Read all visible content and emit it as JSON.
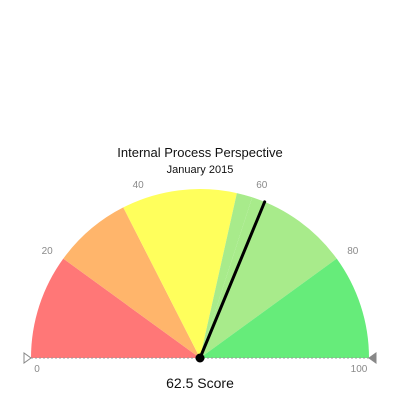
{
  "chart_data": {
    "type": "gauge",
    "title": "Internal Process Perspective",
    "subtitle": "January 2015",
    "range": [
      0,
      100
    ],
    "bands": [
      {
        "from": 0,
        "to": 20,
        "color": "#ff7777"
      },
      {
        "from": 20,
        "to": 35,
        "color": "#ffb56b"
      },
      {
        "from": 35,
        "to": 57,
        "color": "#ffff5c"
      },
      {
        "from": 57,
        "to": 60,
        "color": "#a8eb8b"
      },
      {
        "from": 60,
        "to": 80,
        "color": "#a8eb8b"
      },
      {
        "from": 80,
        "to": 100,
        "color": "#66ec7a"
      }
    ],
    "ticks": [
      {
        "value": 0,
        "label": "0"
      },
      {
        "value": 20,
        "label": "20"
      },
      {
        "value": 40,
        "label": "40"
      },
      {
        "value": 60,
        "label": "60"
      },
      {
        "value": 80,
        "label": "80"
      },
      {
        "value": 100,
        "label": "100"
      }
    ],
    "value": 62.5,
    "value_label": "62.5 Score",
    "needle_color": "#000000",
    "baseline_color": "#999999",
    "marker_color": "#888888"
  }
}
